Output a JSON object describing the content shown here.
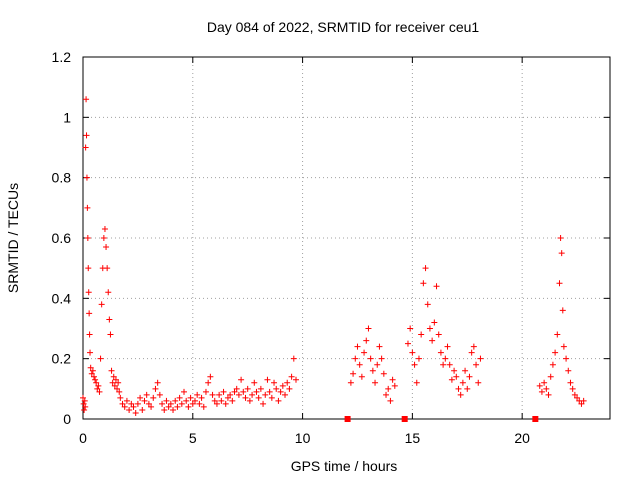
{
  "chart_data": {
    "type": "scatter",
    "title": "Day 084 of 2022, SRMTID for receiver ceu1",
    "xlabel": "GPS time / hours",
    "ylabel": "SRMTID / TECUs",
    "xlim": [
      0,
      24
    ],
    "ylim": [
      0,
      1.2
    ],
    "x_ticks": [
      0,
      5,
      10,
      15,
      20
    ],
    "y_ticks": [
      0,
      0.2,
      0.4,
      0.6,
      0.8,
      1,
      1.2
    ],
    "y_tick_labels": [
      "0",
      "0.2",
      "0.4",
      "0.6",
      "0.8",
      "1",
      "1.2"
    ],
    "grid": true,
    "marker": "+",
    "color": "#ff0000",
    "data_gaps_x": [
      12.05,
      14.65,
      20.6
    ],
    "series": [
      {
        "name": "ceu1",
        "points": [
          [
            0.0,
            0.07
          ],
          [
            0.03,
            0.05
          ],
          [
            0.05,
            0.03
          ],
          [
            0.08,
            0.06
          ],
          [
            0.1,
            0.04
          ],
          [
            0.12,
            0.9
          ],
          [
            0.14,
            1.06
          ],
          [
            0.16,
            0.94
          ],
          [
            0.18,
            0.8
          ],
          [
            0.2,
            0.7
          ],
          [
            0.22,
            0.6
          ],
          [
            0.24,
            0.5
          ],
          [
            0.26,
            0.42
          ],
          [
            0.28,
            0.35
          ],
          [
            0.3,
            0.28
          ],
          [
            0.32,
            0.22
          ],
          [
            0.35,
            0.17
          ],
          [
            0.4,
            0.15
          ],
          [
            0.45,
            0.16
          ],
          [
            0.5,
            0.14
          ],
          [
            0.55,
            0.13
          ],
          [
            0.6,
            0.12
          ],
          [
            0.65,
            0.1
          ],
          [
            0.7,
            0.11
          ],
          [
            0.75,
            0.09
          ],
          [
            0.8,
            0.2
          ],
          [
            0.85,
            0.38
          ],
          [
            0.9,
            0.5
          ],
          [
            0.95,
            0.6
          ],
          [
            1.0,
            0.63
          ],
          [
            1.05,
            0.57
          ],
          [
            1.1,
            0.5
          ],
          [
            1.15,
            0.42
          ],
          [
            1.2,
            0.33
          ],
          [
            1.25,
            0.28
          ],
          [
            1.3,
            0.16
          ],
          [
            1.35,
            0.12
          ],
          [
            1.4,
            0.14
          ],
          [
            1.45,
            0.11
          ],
          [
            1.5,
            0.13
          ],
          [
            1.55,
            0.1
          ],
          [
            1.6,
            0.12
          ],
          [
            1.65,
            0.09
          ],
          [
            1.7,
            0.07
          ],
          [
            1.8,
            0.05
          ],
          [
            1.9,
            0.04
          ],
          [
            2.0,
            0.06
          ],
          [
            2.1,
            0.03
          ],
          [
            2.2,
            0.05
          ],
          [
            2.3,
            0.04
          ],
          [
            2.4,
            0.02
          ],
          [
            2.5,
            0.05
          ],
          [
            2.6,
            0.07
          ],
          [
            2.7,
            0.03
          ],
          [
            2.8,
            0.06
          ],
          [
            2.9,
            0.08
          ],
          [
            3.0,
            0.05
          ],
          [
            3.1,
            0.04
          ],
          [
            3.2,
            0.07
          ],
          [
            3.3,
            0.1
          ],
          [
            3.4,
            0.12
          ],
          [
            3.5,
            0.08
          ],
          [
            3.6,
            0.05
          ],
          [
            3.7,
            0.03
          ],
          [
            3.8,
            0.06
          ],
          [
            3.9,
            0.04
          ],
          [
            4.0,
            0.05
          ],
          [
            4.1,
            0.03
          ],
          [
            4.2,
            0.06
          ],
          [
            4.3,
            0.04
          ],
          [
            4.4,
            0.07
          ],
          [
            4.5,
            0.05
          ],
          [
            4.6,
            0.09
          ],
          [
            4.7,
            0.06
          ],
          [
            4.8,
            0.04
          ],
          [
            4.9,
            0.07
          ],
          [
            5.0,
            0.05
          ],
          [
            5.1,
            0.06
          ],
          [
            5.2,
            0.08
          ],
          [
            5.3,
            0.05
          ],
          [
            5.4,
            0.07
          ],
          [
            5.5,
            0.04
          ],
          [
            5.6,
            0.09
          ],
          [
            5.7,
            0.12
          ],
          [
            5.8,
            0.14
          ],
          [
            5.9,
            0.08
          ],
          [
            6.0,
            0.06
          ],
          [
            6.1,
            0.05
          ],
          [
            6.2,
            0.08
          ],
          [
            6.3,
            0.06
          ],
          [
            6.4,
            0.09
          ],
          [
            6.5,
            0.05
          ],
          [
            6.6,
            0.07
          ],
          [
            6.7,
            0.08
          ],
          [
            6.8,
            0.06
          ],
          [
            6.9,
            0.09
          ],
          [
            7.0,
            0.1
          ],
          [
            7.1,
            0.08
          ],
          [
            7.2,
            0.13
          ],
          [
            7.3,
            0.09
          ],
          [
            7.4,
            0.07
          ],
          [
            7.5,
            0.1
          ],
          [
            7.6,
            0.06
          ],
          [
            7.7,
            0.08
          ],
          [
            7.8,
            0.12
          ],
          [
            7.9,
            0.09
          ],
          [
            8.0,
            0.07
          ],
          [
            8.1,
            0.1
          ],
          [
            8.2,
            0.05
          ],
          [
            8.3,
            0.08
          ],
          [
            8.4,
            0.13
          ],
          [
            8.5,
            0.09
          ],
          [
            8.6,
            0.07
          ],
          [
            8.7,
            0.12
          ],
          [
            8.8,
            0.1
          ],
          [
            8.9,
            0.06
          ],
          [
            9.0,
            0.09
          ],
          [
            9.1,
            0.11
          ],
          [
            9.2,
            0.08
          ],
          [
            9.3,
            0.12
          ],
          [
            9.4,
            0.1
          ],
          [
            9.5,
            0.14
          ],
          [
            9.6,
            0.2
          ],
          [
            9.7,
            0.13
          ],
          [
            12.2,
            0.12
          ],
          [
            12.3,
            0.15
          ],
          [
            12.4,
            0.2
          ],
          [
            12.5,
            0.24
          ],
          [
            12.6,
            0.18
          ],
          [
            12.7,
            0.14
          ],
          [
            12.8,
            0.22
          ],
          [
            12.9,
            0.26
          ],
          [
            13.0,
            0.3
          ],
          [
            13.1,
            0.2
          ],
          [
            13.2,
            0.16
          ],
          [
            13.3,
            0.12
          ],
          [
            13.4,
            0.18
          ],
          [
            13.5,
            0.24
          ],
          [
            13.6,
            0.2
          ],
          [
            13.7,
            0.15
          ],
          [
            13.8,
            0.08
          ],
          [
            13.9,
            0.1
          ],
          [
            14.0,
            0.06
          ],
          [
            14.1,
            0.13
          ],
          [
            14.2,
            0.11
          ],
          [
            14.8,
            0.25
          ],
          [
            14.9,
            0.3
          ],
          [
            15.0,
            0.22
          ],
          [
            15.1,
            0.18
          ],
          [
            15.2,
            0.12
          ],
          [
            15.3,
            0.2
          ],
          [
            15.4,
            0.28
          ],
          [
            15.5,
            0.45
          ],
          [
            15.6,
            0.5
          ],
          [
            15.7,
            0.38
          ],
          [
            15.8,
            0.3
          ],
          [
            15.9,
            0.26
          ],
          [
            16.0,
            0.32
          ],
          [
            16.1,
            0.44
          ],
          [
            16.2,
            0.28
          ],
          [
            16.3,
            0.22
          ],
          [
            16.4,
            0.18
          ],
          [
            16.5,
            0.2
          ],
          [
            16.6,
            0.24
          ],
          [
            16.7,
            0.18
          ],
          [
            16.8,
            0.13
          ],
          [
            16.9,
            0.16
          ],
          [
            17.0,
            0.14
          ],
          [
            17.1,
            0.1
          ],
          [
            17.2,
            0.08
          ],
          [
            17.3,
            0.12
          ],
          [
            17.4,
            0.16
          ],
          [
            17.5,
            0.1
          ],
          [
            17.6,
            0.14
          ],
          [
            17.7,
            0.22
          ],
          [
            17.8,
            0.24
          ],
          [
            17.9,
            0.18
          ],
          [
            18.0,
            0.12
          ],
          [
            18.1,
            0.2
          ],
          [
            20.8,
            0.11
          ],
          [
            20.9,
            0.09
          ],
          [
            21.0,
            0.12
          ],
          [
            21.1,
            0.1
          ],
          [
            21.2,
            0.08
          ],
          [
            21.3,
            0.14
          ],
          [
            21.4,
            0.18
          ],
          [
            21.5,
            0.22
          ],
          [
            21.6,
            0.28
          ],
          [
            21.7,
            0.45
          ],
          [
            21.75,
            0.6
          ],
          [
            21.8,
            0.55
          ],
          [
            21.85,
            0.36
          ],
          [
            21.9,
            0.24
          ],
          [
            22.0,
            0.2
          ],
          [
            22.1,
            0.16
          ],
          [
            22.2,
            0.12
          ],
          [
            22.3,
            0.1
          ],
          [
            22.4,
            0.08
          ],
          [
            22.5,
            0.07
          ],
          [
            22.6,
            0.06
          ],
          [
            22.7,
            0.05
          ],
          [
            22.8,
            0.06
          ]
        ]
      }
    ]
  }
}
